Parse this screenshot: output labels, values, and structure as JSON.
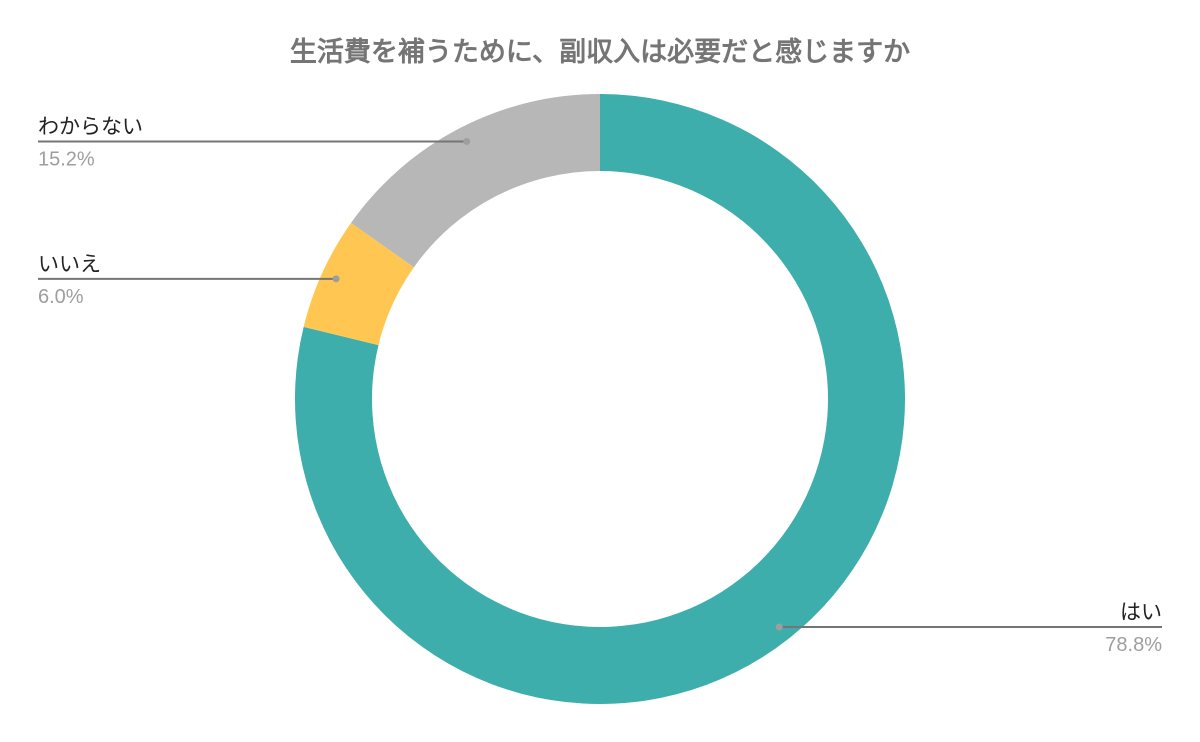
{
  "chart_data": {
    "type": "pie",
    "donut": true,
    "title": "生活費を補うために、副収入は必要だと感じますか",
    "categories": [
      "はい",
      "いいえ",
      "わからない"
    ],
    "values": [
      78.8,
      6.0,
      15.2
    ],
    "value_labels": [
      "78.8%",
      "6.0%",
      "15.2%"
    ],
    "colors": [
      "#3DAEAC",
      "#FFC751",
      "#B7B7B7"
    ],
    "start": "top",
    "direction": "clockwise",
    "legend": "none",
    "labels": "outside with leader lines"
  }
}
